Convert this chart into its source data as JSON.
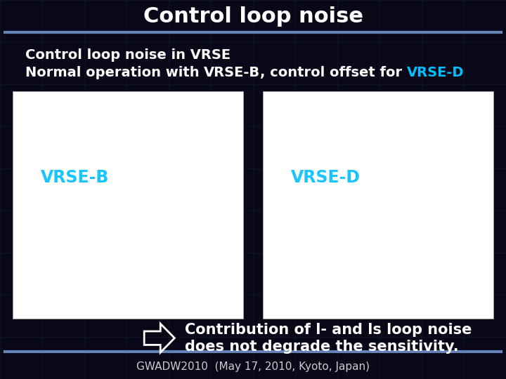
{
  "title": "Control loop noise",
  "subtitle_line1": "Control loop noise in VRSE",
  "subtitle_line2_part1": "Normal operation with ",
  "subtitle_line2_part2": "VRSE-B",
  "subtitle_line2_part3": ", control offset for ",
  "subtitle_line2_part4": "VRSE-D",
  "arrow_text_line1": "Contribution of l- and ls loop noise",
  "arrow_text_line2": "does not degrade the sensitivity.",
  "footer": "GWADW2010  (May 17, 2010, Kyoto, Japan)",
  "vrse_b_label": "VRSE-B",
  "vrse_d_label": "VRSE-D",
  "bg_color": "#080818",
  "title_color": "#ffffff",
  "subtitle_color": "#ffffff",
  "highlight_color": "#00bfff",
  "arrow_text_color": "#ffffff",
  "footer_color": "#cccccc",
  "separator_color": "#7090c8",
  "title_fontsize": 22,
  "subtitle_fontsize": 14,
  "arrow_text_fontsize": 15,
  "footer_fontsize": 11,
  "grid_color": "#1a3050"
}
